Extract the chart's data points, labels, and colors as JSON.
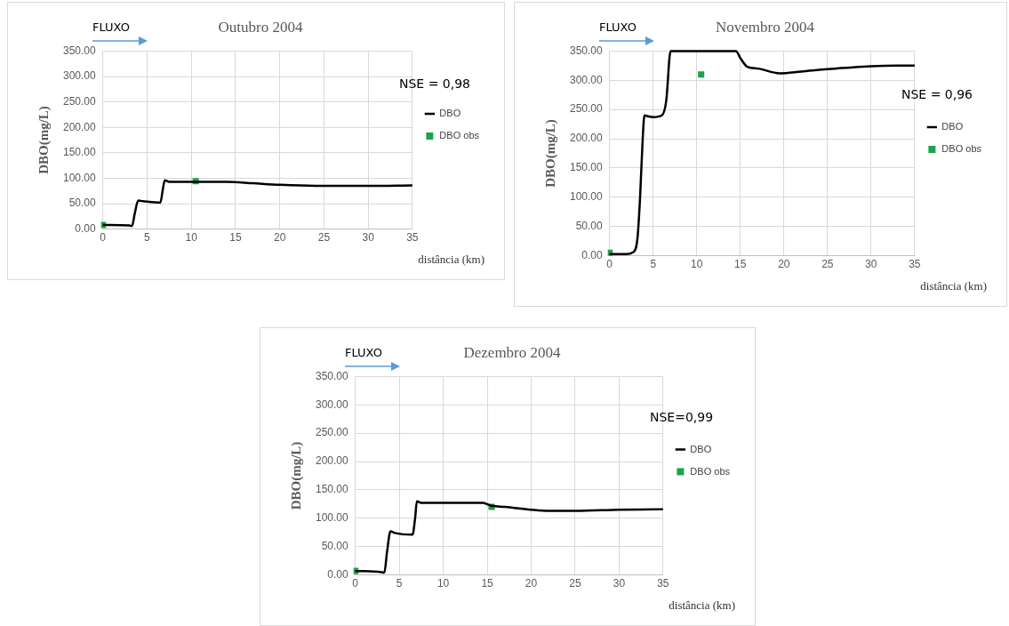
{
  "chart_data": [
    {
      "type": "line",
      "title": "Outubro 2004",
      "xlabel": "distância (km)",
      "ylabel": "DBO(mg/L)",
      "annotations": [
        "FLUXO",
        "NSE = 0,98"
      ],
      "xlim": [
        0,
        35
      ],
      "xticks": [
        0,
        5,
        10,
        15,
        20,
        25,
        30,
        35
      ],
      "ylim": [
        0,
        350
      ],
      "yticks": [
        {
          "value": 0,
          "label": "0.00"
        },
        {
          "value": 50,
          "label": "50.00"
        },
        {
          "value": 100,
          "label": "100.00"
        },
        {
          "value": 150,
          "label": "150.00"
        },
        {
          "value": 200,
          "label": "200.00"
        },
        {
          "value": 250,
          "label": "250.00"
        },
        {
          "value": 300,
          "label": "300.00"
        },
        {
          "value": 350,
          "label": "350.00"
        }
      ],
      "grid": true,
      "legend": "right",
      "series": [
        {
          "name": "DBO",
          "marker": "none",
          "color": "#000000",
          "x": [
            0,
            3,
            3.3,
            3.6,
            4,
            4.5,
            6.5,
            6.8,
            7,
            7.5,
            10,
            14,
            17,
            20,
            24,
            30,
            35
          ],
          "values": [
            8,
            7,
            6,
            30,
            56,
            55,
            52,
            80,
            96,
            93,
            93,
            93,
            90,
            87,
            85,
            85,
            86
          ]
        },
        {
          "name": "DBO obs",
          "type": "scatter",
          "marker": "square",
          "color": "#1aa34a",
          "x": [
            0,
            10.5
          ],
          "values": [
            8,
            94
          ]
        }
      ]
    },
    {
      "type": "line",
      "title": "Novembro 2004",
      "xlabel": "distância (km)",
      "ylabel": "DBO(mg/L)",
      "annotations": [
        "FLUXO",
        "NSE = 0,96"
      ],
      "xlim": [
        0,
        35
      ],
      "xticks": [
        0,
        5,
        10,
        15,
        20,
        25,
        30,
        35
      ],
      "ylim": [
        0,
        350
      ],
      "yticks": [
        {
          "value": 0,
          "label": "0.00"
        },
        {
          "value": 50,
          "label": "50.00"
        },
        {
          "value": 100,
          "label": "100.00"
        },
        {
          "value": 150,
          "label": "150.00"
        },
        {
          "value": 200,
          "label": "200.00"
        },
        {
          "value": 250,
          "label": "250.00"
        },
        {
          "value": 300,
          "label": "300.00"
        },
        {
          "value": 350,
          "label": "350.00"
        }
      ],
      "grid": true,
      "legend": "right",
      "series": [
        {
          "name": "DBO",
          "marker": "none",
          "color": "#000000",
          "x": [
            0,
            2,
            2.7,
            3.2,
            3.5,
            3.8,
            4,
            4.5,
            5,
            6,
            6.5,
            7,
            14.5,
            15,
            15.8,
            17,
            19.5,
            22,
            25,
            30,
            33,
            35
          ],
          "values": [
            3,
            3,
            6,
            30,
            100,
            200,
            240,
            238,
            237,
            240,
            265,
            350,
            350,
            338,
            323,
            320,
            312,
            315,
            319,
            324,
            325,
            325
          ]
        },
        {
          "name": "DBO obs",
          "type": "scatter",
          "marker": "square",
          "color": "#1aa34a",
          "x": [
            0,
            10.5
          ],
          "values": [
            5,
            310
          ]
        }
      ]
    },
    {
      "type": "line",
      "title": "Dezembro 2004",
      "xlabel": "distância (km)",
      "ylabel": "DBO(mg/L)",
      "annotations": [
        "FLUXO",
        "NSE=0,99"
      ],
      "xlim": [
        0,
        35
      ],
      "xticks": [
        0,
        5,
        10,
        15,
        20,
        25,
        30,
        35
      ],
      "ylim": [
        0,
        350
      ],
      "yticks": [
        {
          "value": 0,
          "label": "0.00"
        },
        {
          "value": 50,
          "label": "50.00"
        },
        {
          "value": 100,
          "label": "100.00"
        },
        {
          "value": 150,
          "label": "150.00"
        },
        {
          "value": 200,
          "label": "200.00"
        },
        {
          "value": 250,
          "label": "250.00"
        },
        {
          "value": 300,
          "label": "300.00"
        },
        {
          "value": 350,
          "label": "350.00"
        }
      ],
      "grid": true,
      "legend": "right",
      "series": [
        {
          "name": "DBO",
          "marker": "none",
          "color": "#000000",
          "x": [
            0,
            3,
            3.3,
            3.6,
            4,
            4.5,
            6.5,
            6.8,
            7,
            7.5,
            10,
            14.5,
            15.5,
            17,
            20,
            22,
            25,
            30,
            35
          ],
          "values": [
            7,
            5,
            4,
            40,
            77,
            74,
            71,
            100,
            130,
            127,
            127,
            127,
            122,
            120,
            115,
            113,
            113,
            115,
            116
          ]
        },
        {
          "name": "DBO obs",
          "type": "scatter",
          "marker": "square",
          "color": "#1aa34a",
          "x": [
            0,
            15.5
          ],
          "values": [
            7,
            120
          ]
        }
      ]
    }
  ]
}
